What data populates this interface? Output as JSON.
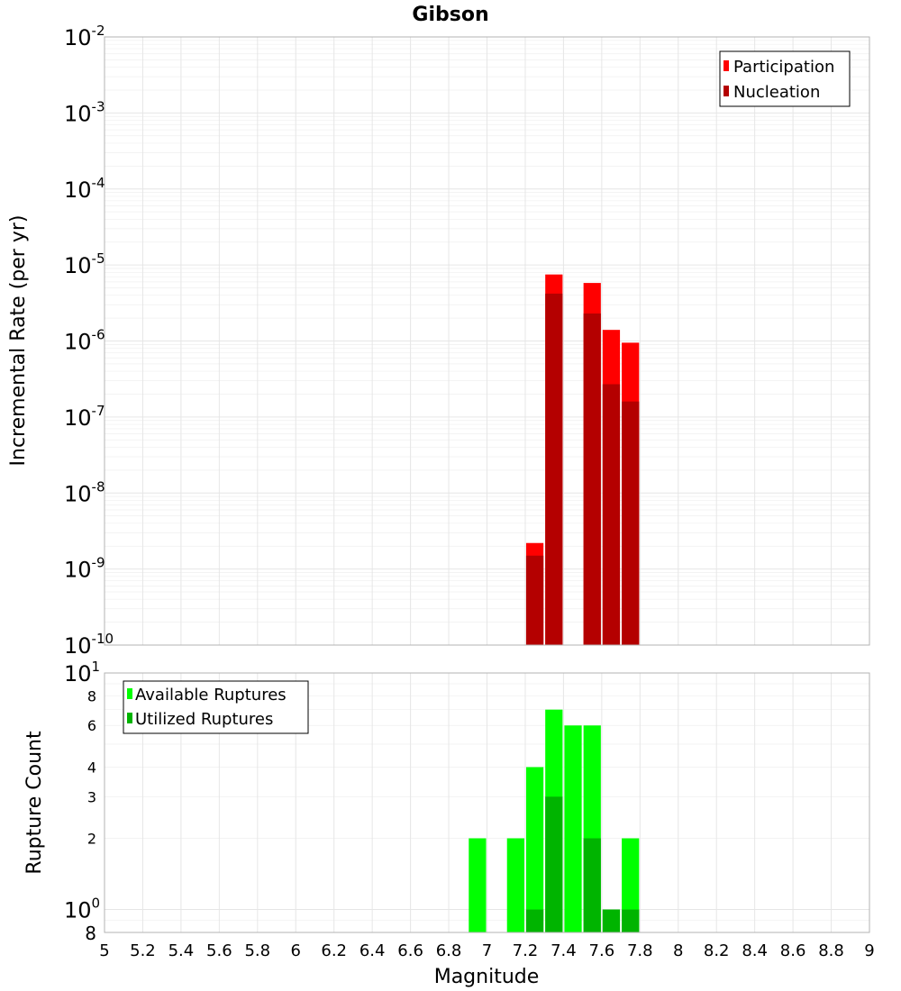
{
  "chart_data": [
    {
      "id": "rate",
      "type": "bar",
      "title": "Gibson",
      "xlabel": "",
      "ylabel": "Incremental Rate (per yr)",
      "yscale": "log",
      "xlim": [
        5,
        9
      ],
      "ylim": [
        1e-10,
        0.01
      ],
      "y_tick_labels": [
        {
          "base": "10",
          "exp": "-10"
        },
        {
          "base": "10",
          "exp": "-9"
        },
        {
          "base": "10",
          "exp": "-8"
        },
        {
          "base": "10",
          "exp": "-7"
        },
        {
          "base": "10",
          "exp": "-6"
        },
        {
          "base": "10",
          "exp": "-5"
        },
        {
          "base": "10",
          "exp": "-4"
        },
        {
          "base": "10",
          "exp": "-3"
        },
        {
          "base": "10",
          "exp": "-2"
        }
      ],
      "grid": true,
      "legend_position": "top-right",
      "bin_width": 0.1,
      "series": [
        {
          "name": "Participation",
          "color": "#ff0000",
          "points": [
            {
              "x": 7.25,
              "y": 2.2e-09
            },
            {
              "x": 7.35,
              "y": 7.5e-06
            },
            {
              "x": 7.55,
              "y": 5.8e-06
            },
            {
              "x": 7.65,
              "y": 1.4e-06
            },
            {
              "x": 7.75,
              "y": 9.5e-07
            }
          ]
        },
        {
          "name": "Nucleation",
          "color": "#b40000",
          "points": [
            {
              "x": 7.25,
              "y": 1.5e-09
            },
            {
              "x": 7.35,
              "y": 4.2e-06
            },
            {
              "x": 7.55,
              "y": 2.3e-06
            },
            {
              "x": 7.65,
              "y": 2.7e-07
            },
            {
              "x": 7.75,
              "y": 1.6e-07
            }
          ]
        }
      ]
    },
    {
      "id": "count",
      "type": "bar",
      "title": "",
      "xlabel": "Magnitude",
      "ylabel": "Rupture Count",
      "yscale": "log",
      "xlim": [
        5,
        9
      ],
      "ylim": [
        0.8,
        10
      ],
      "x_tick_labels": [
        "5",
        "5.2",
        "5.4",
        "5.6",
        "5.8",
        "6",
        "6.2",
        "6.4",
        "6.6",
        "6.8",
        "7",
        "7.2",
        "7.4",
        "7.6",
        "7.8",
        "8",
        "8.2",
        "8.4",
        "8.6",
        "8.8",
        "9"
      ],
      "y_major_tick_labels": [
        {
          "value": 1,
          "base": "10",
          "exp": "0"
        },
        {
          "value": 10,
          "base": "10",
          "exp": "1"
        }
      ],
      "y_minor_tick_labels": [
        {
          "value": 0.8,
          "label": "8"
        },
        {
          "value": 2,
          "label": "2"
        },
        {
          "value": 3,
          "label": "3"
        },
        {
          "value": 4,
          "label": "4"
        },
        {
          "value": 6,
          "label": "6"
        },
        {
          "value": 8,
          "label": "8"
        }
      ],
      "grid": true,
      "legend_position": "top-left",
      "bin_width": 0.1,
      "series": [
        {
          "name": "Available Ruptures",
          "color": "#00ff00",
          "points": [
            {
              "x": 6.95,
              "y": 2
            },
            {
              "x": 7.15,
              "y": 2
            },
            {
              "x": 7.25,
              "y": 4
            },
            {
              "x": 7.35,
              "y": 7
            },
            {
              "x": 7.45,
              "y": 6
            },
            {
              "x": 7.55,
              "y": 6
            },
            {
              "x": 7.65,
              "y": 1
            },
            {
              "x": 7.75,
              "y": 2
            }
          ]
        },
        {
          "name": "Utilized Ruptures",
          "color": "#00b400",
          "points": [
            {
              "x": 7.25,
              "y": 1
            },
            {
              "x": 7.35,
              "y": 3
            },
            {
              "x": 7.55,
              "y": 2
            },
            {
              "x": 7.65,
              "y": 1
            },
            {
              "x": 7.75,
              "y": 1
            }
          ]
        }
      ]
    }
  ]
}
